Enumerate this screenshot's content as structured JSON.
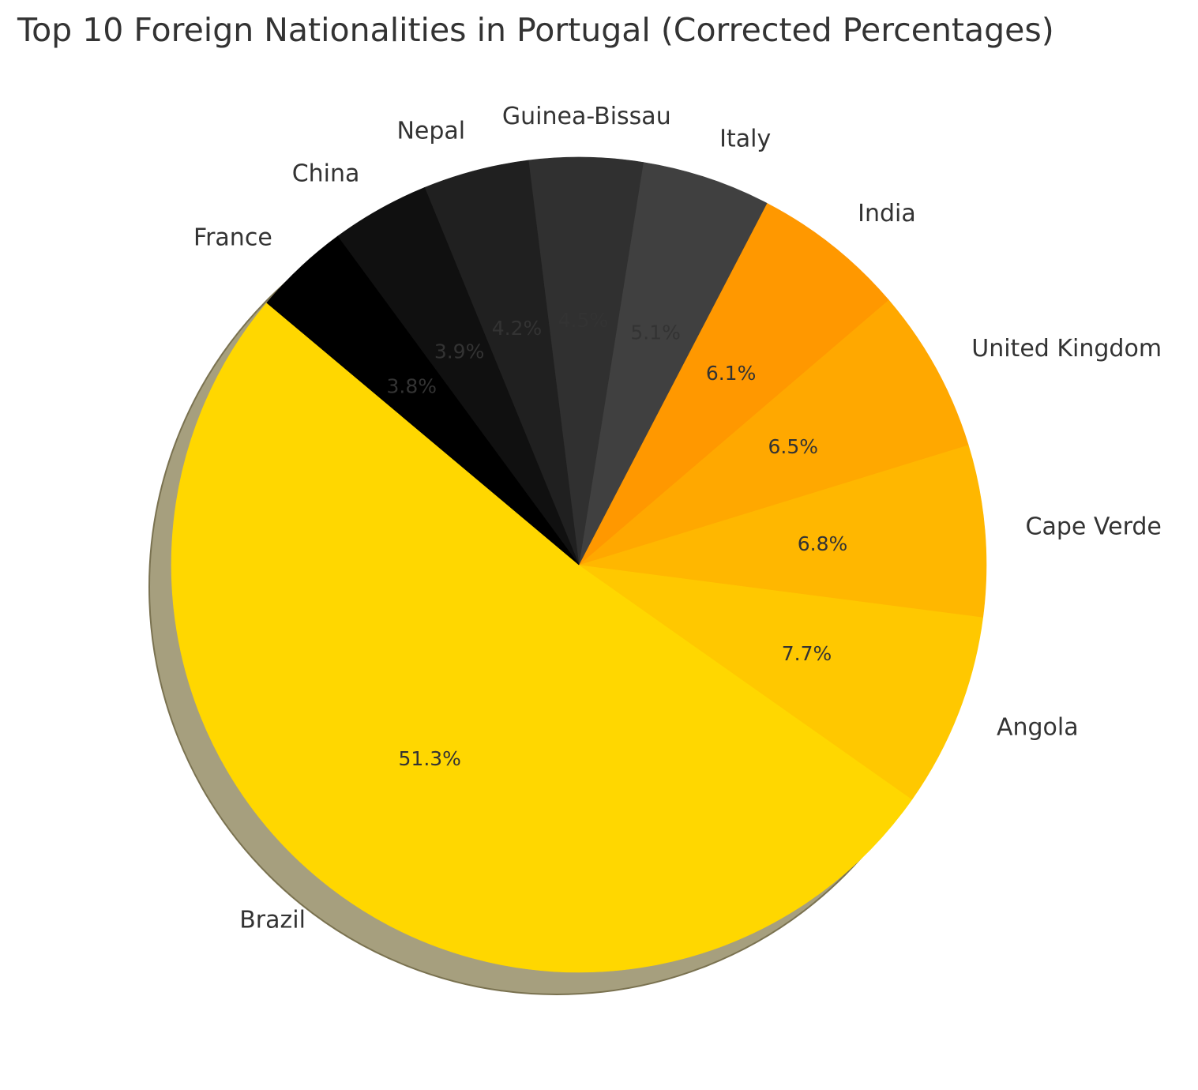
{
  "chart_data": {
    "type": "pie",
    "title": "Top 10 Foreign Nationalities in Portugal (Corrected Percentages)",
    "start_angle": 140,
    "shadow": true,
    "categories": [
      "Brazil",
      "Angola",
      "Cape Verde",
      "United Kingdom",
      "India",
      "Italy",
      "Guinea-Bissau",
      "Nepal",
      "China",
      "France"
    ],
    "values": [
      51.3,
      7.7,
      6.8,
      6.5,
      6.1,
      5.1,
      4.5,
      4.2,
      3.9,
      3.8
    ],
    "labels_pct": [
      "51.3%",
      "7.7%",
      "6.8%",
      "6.5%",
      "6.1%",
      "5.1%",
      "4.5%",
      "4.2%",
      "3.9%",
      "3.8%"
    ],
    "colors": [
      "#FFD700",
      "#FFC800",
      "#FFB700",
      "#FFA800",
      "#FF9800",
      "#404040",
      "#303030",
      "#202020",
      "#101010",
      "#000000"
    ],
    "pct_text_colors": [
      "#333333",
      "#333333",
      "#333333",
      "#333333",
      "#333333",
      "#333333",
      "#333333",
      "#333333",
      "#333333",
      "#333333"
    ]
  }
}
